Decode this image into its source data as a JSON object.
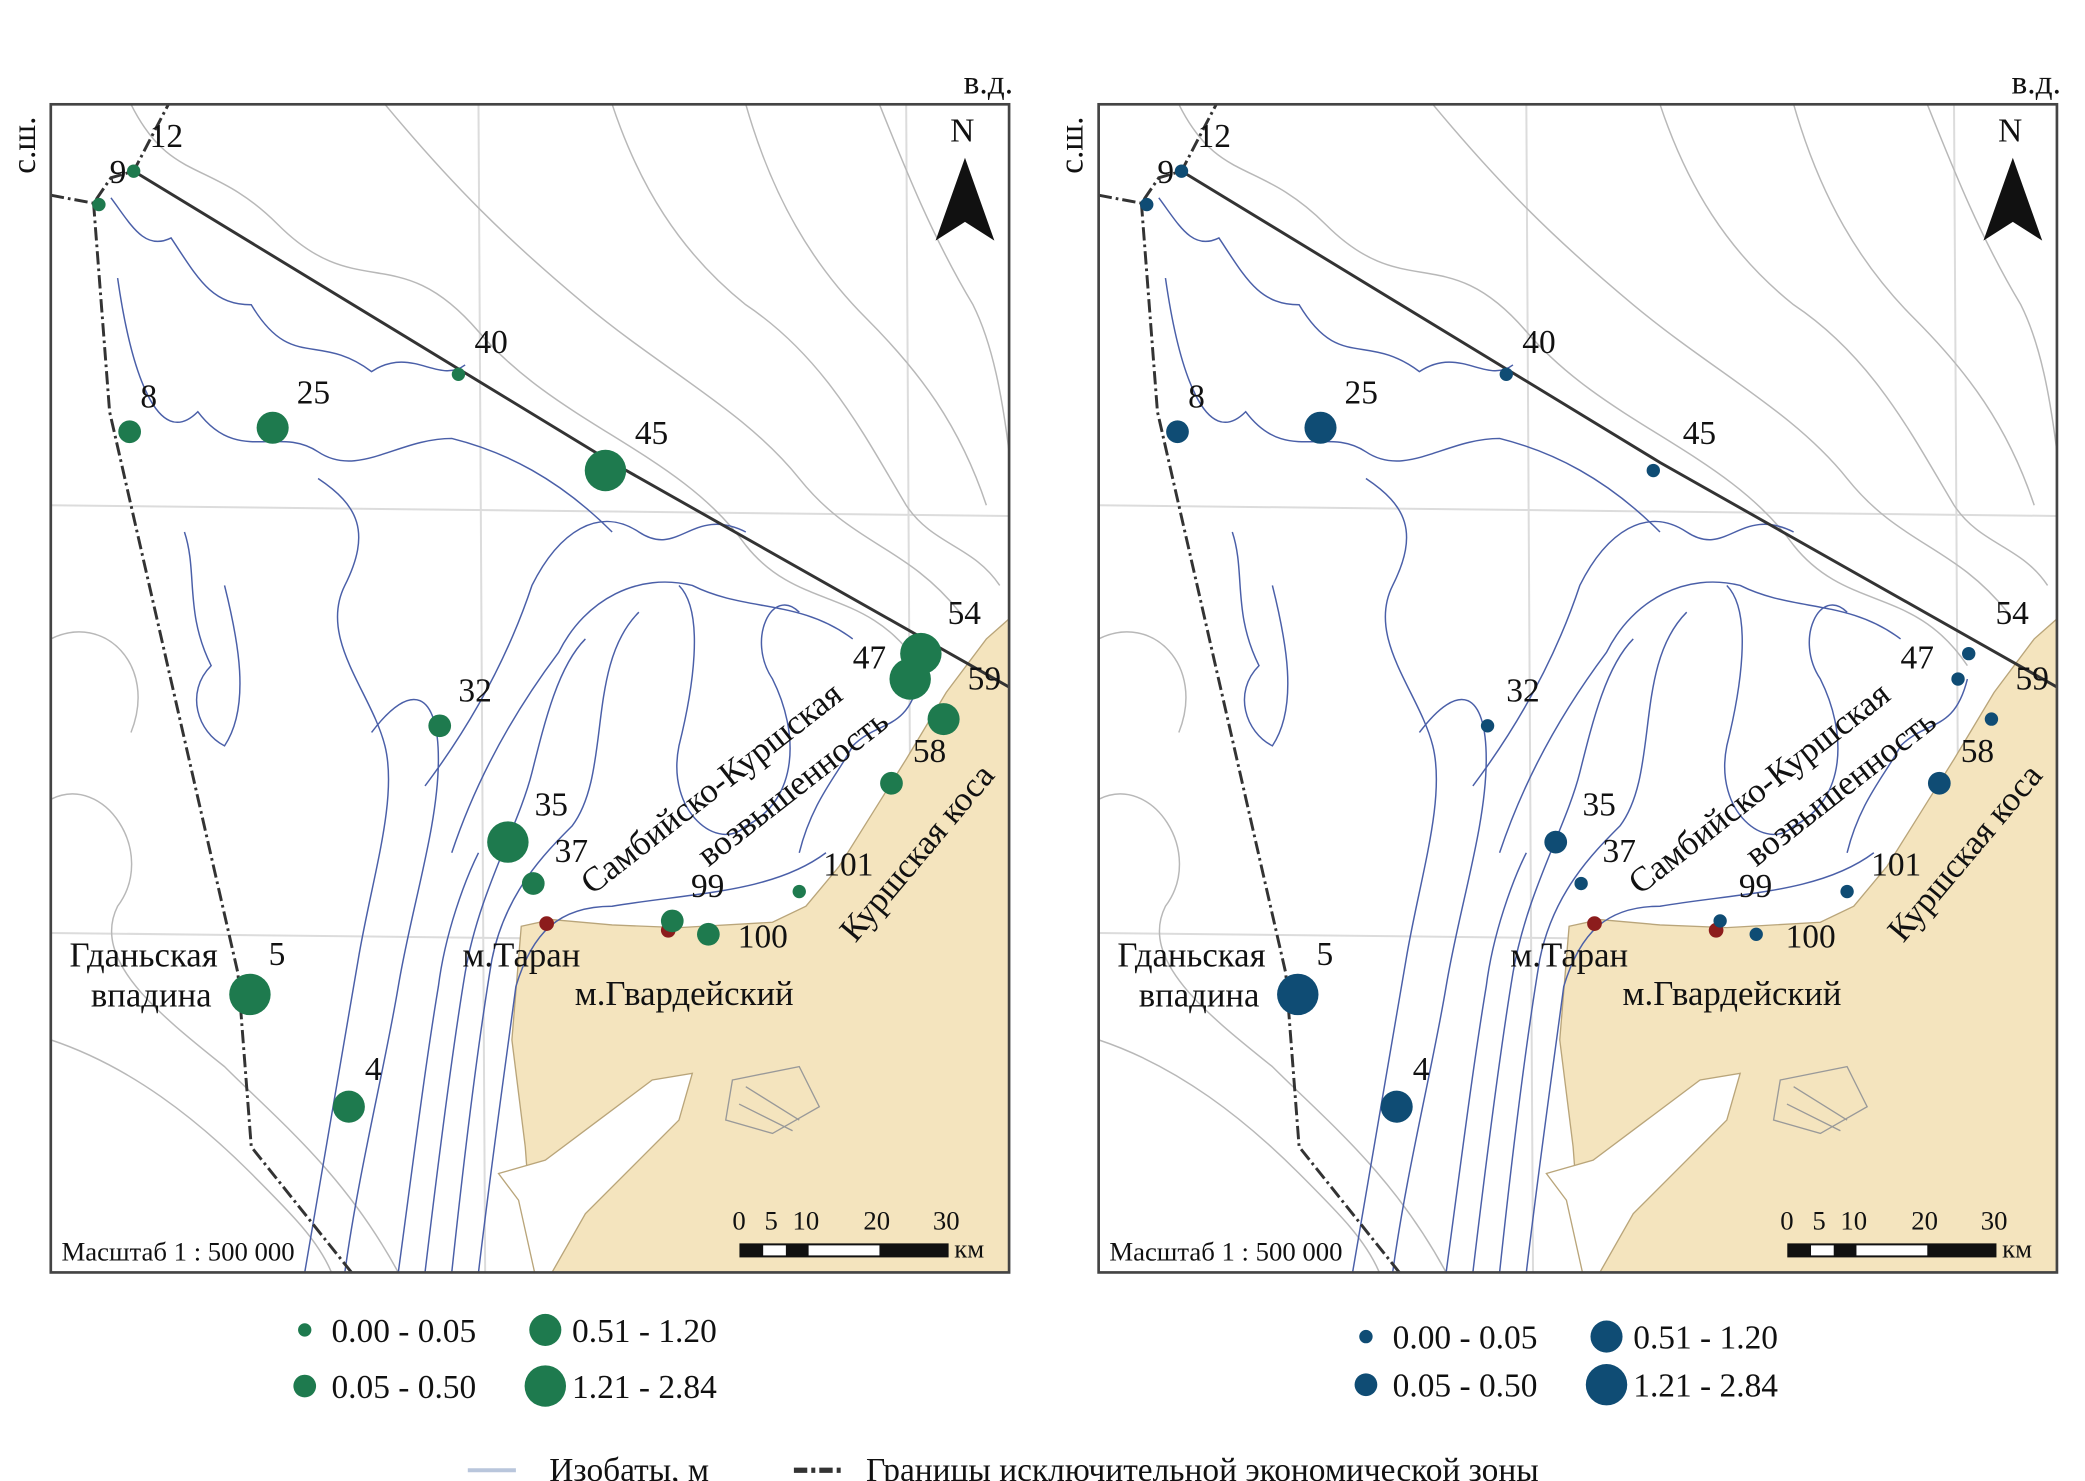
{
  "colors": {
    "map1": "#1e7a4e",
    "map2": "#0f4c74",
    "cape": "#8c1c1c",
    "land": "#f4e4be",
    "isobath": "#4a5fa8"
  },
  "axes": {
    "lat": "с.ш.",
    "lon": "в.д.",
    "north": "N"
  },
  "places": {
    "gdansk_1": "Гданьская",
    "gdansk_2": "впадина",
    "sambia_1": "Самбийско-Куршская",
    "sambia_2": "возвышенность",
    "spit": "Куршская коса",
    "taran": "м.Таран",
    "gvard": "м.Гвардейский"
  },
  "scale": {
    "label": "Масштаб 1 : 500 000",
    "ticks": [
      "0",
      "5",
      "10",
      "20",
      "30"
    ],
    "unit": "км"
  },
  "stations": [
    "12",
    "9",
    "40",
    "8",
    "25",
    "45",
    "54",
    "47",
    "59",
    "32",
    "58",
    "35",
    "37",
    "101",
    "99",
    "100",
    "5",
    "4"
  ],
  "map1_classes": {
    "12": 0,
    "9": 0,
    "40": 0,
    "8": 1,
    "25": 2,
    "45": 3,
    "54": 3,
    "47": 3,
    "59": 2,
    "32": 1,
    "58": 1,
    "35": 3,
    "37": 1,
    "101": 0,
    "99": 1,
    "100": 1,
    "5": 3,
    "4": 2
  },
  "map2_classes": {
    "12": 0,
    "9": 0,
    "40": 0,
    "8": 1,
    "25": 2,
    "45": 0,
    "54": 0,
    "47": 0,
    "59": 0,
    "32": 0,
    "58": 1,
    "35": 1,
    "37": 0,
    "101": 0,
    "99": 0,
    "100": 0,
    "5": 3,
    "4": 2
  },
  "legend_classes": [
    "0.00 - 0.05",
    "0.05 - 0.50",
    "0.51 - 1.20",
    "1.21 - 2.84"
  ],
  "bottom_legend": {
    "isobaths": "Изобаты, м",
    "eez": "Границы исключительной экономической зоны"
  }
}
